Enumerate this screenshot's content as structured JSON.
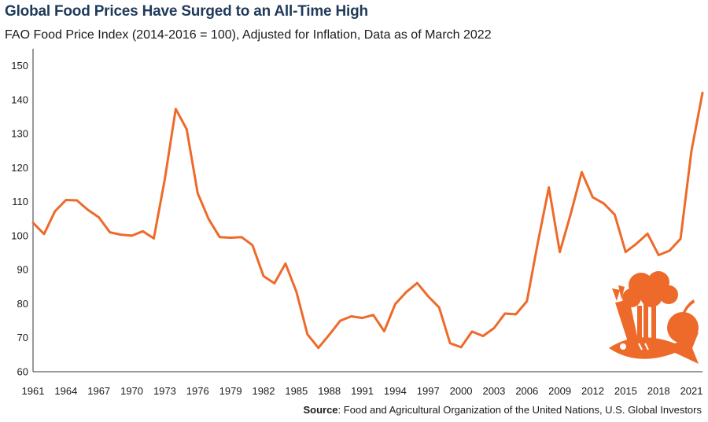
{
  "title": "Global Food Prices Have Surged to an All-Time High",
  "subtitle": "FAO Food Price Index (2014-2016 = 100), Adjusted for Inflation, Data as of March 2022",
  "source": {
    "label": "Source",
    "text": ": Food and Agricultural Organization of the United Nations, U.S. Global Investors"
  },
  "colors": {
    "line": "#ee6a2a",
    "text": "#1a1a1a",
    "title": "#1f3a5a",
    "axis": "#333333"
  },
  "icon": "food-icon",
  "chart_data": {
    "type": "line",
    "title": "Global Food Prices Have Surged to an All-Time High",
    "subtitle": "FAO Food Price Index (2014-2016 = 100), Adjusted for Inflation, Data as of March 2022",
    "xlabel": "",
    "ylabel": "",
    "xlim": [
      1961,
      2022
    ],
    "ylim": [
      60,
      155
    ],
    "yticks": [
      60,
      70,
      80,
      90,
      100,
      110,
      120,
      130,
      140,
      150
    ],
    "xticks": [
      1961,
      1964,
      1967,
      1970,
      1973,
      1976,
      1979,
      1982,
      1985,
      1988,
      1991,
      1994,
      1997,
      2000,
      2003,
      2006,
      2009,
      2012,
      2015,
      2018,
      2021
    ],
    "grid": false,
    "legend": "none",
    "x": [
      1961,
      1962,
      1963,
      1964,
      1965,
      1966,
      1967,
      1968,
      1969,
      1970,
      1971,
      1972,
      1973,
      1974,
      1975,
      1976,
      1977,
      1978,
      1979,
      1980,
      1981,
      1982,
      1983,
      1984,
      1985,
      1986,
      1987,
      1988,
      1989,
      1990,
      1991,
      1992,
      1993,
      1994,
      1995,
      1996,
      1997,
      1998,
      1999,
      2000,
      2001,
      2002,
      2003,
      2004,
      2005,
      2006,
      2007,
      2008,
      2009,
      2010,
      2011,
      2012,
      2013,
      2014,
      2015,
      2016,
      2017,
      2018,
      2019,
      2020,
      2021,
      2022
    ],
    "values": [
      103.8,
      100.5,
      107.2,
      110.5,
      110.4,
      107.6,
      105.4,
      101.0,
      100.3,
      100.0,
      101.3,
      99.2,
      116.5,
      137.3,
      131.3,
      112.5,
      104.9,
      99.6,
      99.4,
      99.6,
      97.2,
      88.1,
      86.0,
      91.8,
      83.5,
      71.0,
      67.0,
      70.9,
      75.0,
      76.3,
      75.8,
      76.7,
      71.9,
      79.9,
      83.4,
      86.1,
      82.2,
      78.9,
      68.4,
      67.2,
      71.8,
      70.5,
      72.8,
      77.1,
      76.9,
      80.7,
      98.0,
      114.2,
      95.2,
      106.5,
      118.7,
      111.3,
      109.5,
      106.2,
      95.2,
      97.7,
      100.6,
      94.3,
      95.6,
      99.1,
      125.0,
      142.0
    ]
  }
}
